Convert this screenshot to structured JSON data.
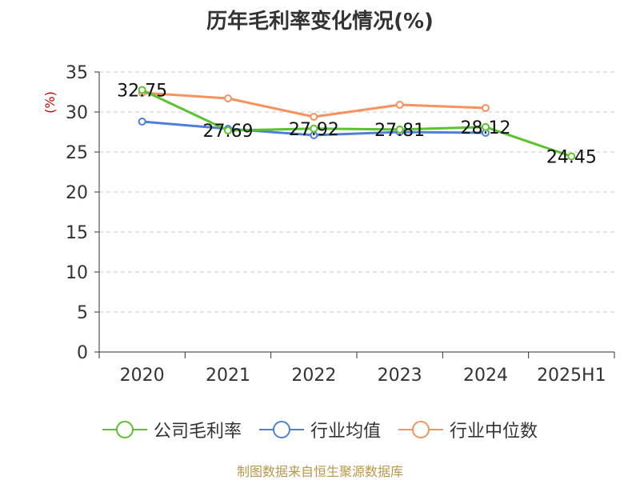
{
  "chart_data": {
    "type": "line",
    "title": "历年毛利率变化情况(%)",
    "ylabel": "(%)",
    "categories": [
      "2020",
      "2021",
      "2022",
      "2023",
      "2024",
      "2025H1"
    ],
    "ylim": [
      0,
      35
    ],
    "yticks": [
      0,
      5,
      10,
      15,
      20,
      25,
      30,
      35
    ],
    "grid": true,
    "legend_position": "bottom",
    "series": [
      {
        "name": "公司毛利率",
        "color": "#5cc22e",
        "values": [
          32.75,
          27.69,
          27.92,
          27.81,
          28.12,
          24.45
        ],
        "labels": [
          "32.75",
          "27.69",
          "27.92",
          "27.81",
          "28.12",
          "24.45"
        ]
      },
      {
        "name": "行业均值",
        "color": "#4f7fda",
        "values": [
          28.8,
          27.9,
          27.1,
          27.5,
          27.4,
          null
        ]
      },
      {
        "name": "行业中位数",
        "color": "#f5925e",
        "values": [
          32.4,
          31.7,
          29.4,
          30.9,
          30.5,
          null
        ]
      }
    ],
    "source": "制图数据来自恒生聚源数据库"
  }
}
